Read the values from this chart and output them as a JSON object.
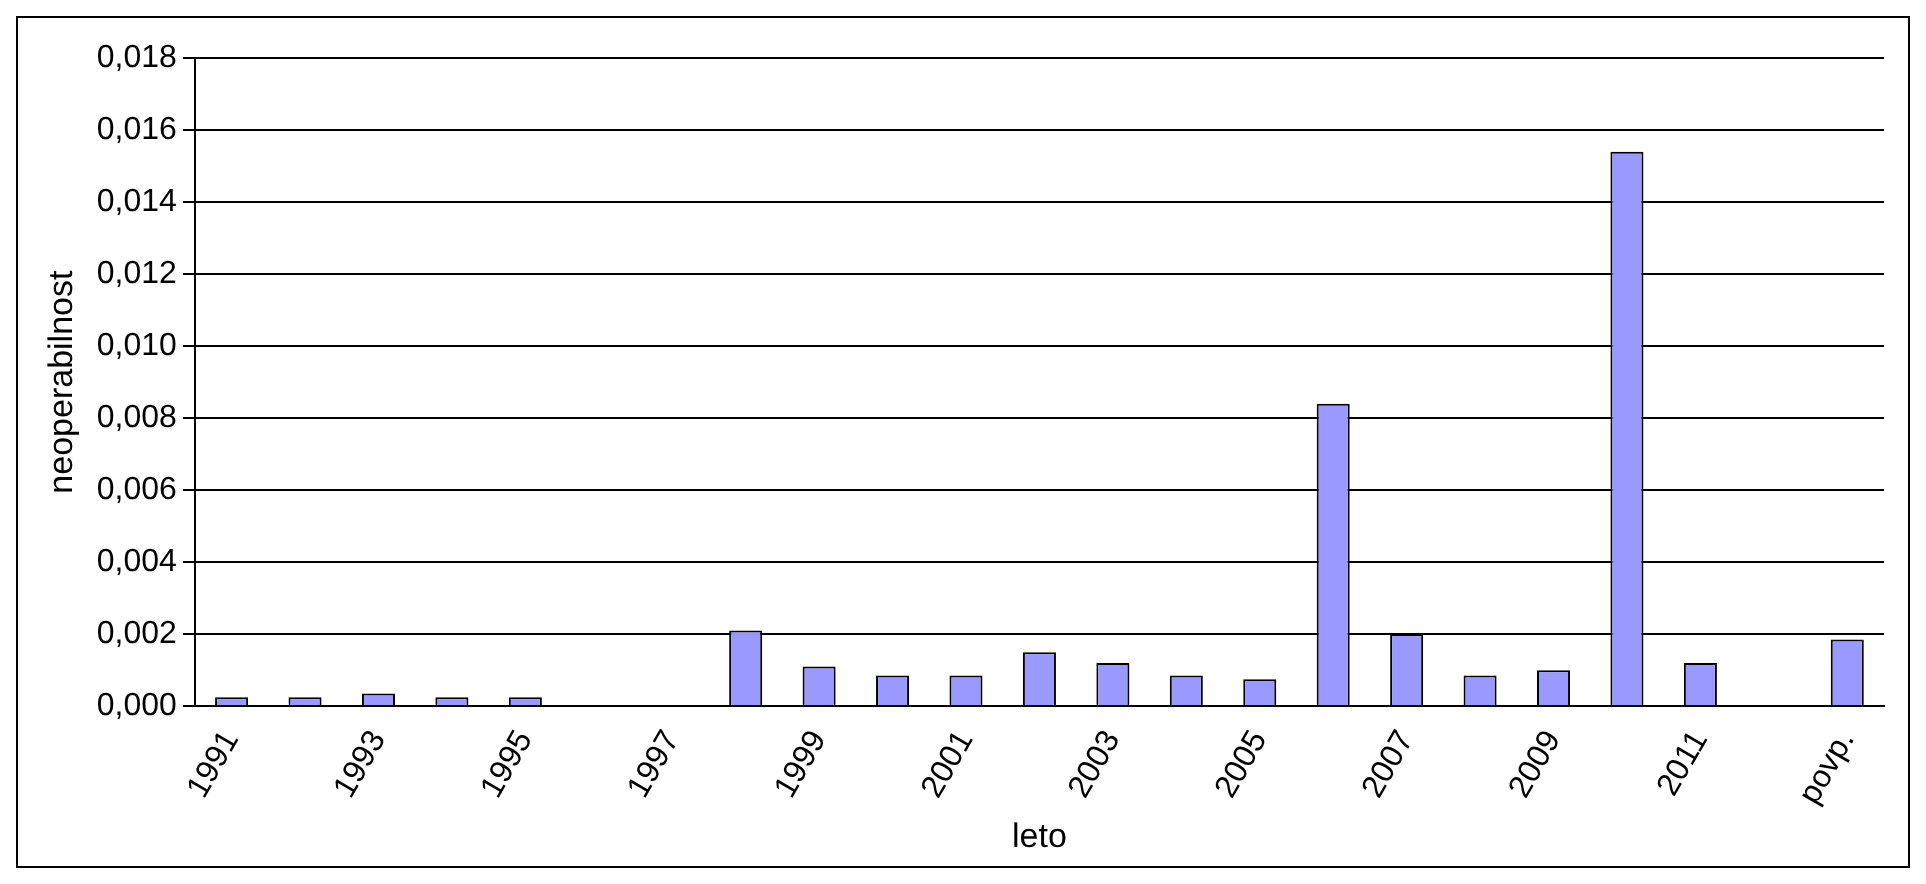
{
  "chart_data": {
    "type": "bar",
    "xlabel": "leto",
    "ylabel": "neoperabilnost",
    "categories": [
      "1991",
      null,
      "1993",
      null,
      "1995",
      null,
      "1997",
      null,
      "1999",
      null,
      "2001",
      null,
      "2003",
      null,
      "2005",
      null,
      "2007",
      null,
      "2009",
      null,
      "2011",
      null,
      "povp."
    ],
    "values": [
      0.00025,
      0.00025,
      0.00035,
      0.00025,
      0.00025,
      0,
      0,
      0.0021,
      0.0011,
      0.00085,
      0.00085,
      0.0015,
      0.0012,
      0.00085,
      0.00075,
      0.0084,
      0.002,
      0.00085,
      0.001,
      0.0154,
      0.0012,
      0,
      0.00185
    ],
    "color": "#9999ff",
    "ylim": [
      0,
      0.018
    ],
    "yticks": [
      {
        "value": 0,
        "label": "0,000"
      },
      {
        "value": 0.002,
        "label": "0,002"
      },
      {
        "value": 0.004,
        "label": "0,004"
      },
      {
        "value": 0.006,
        "label": "0,006"
      },
      {
        "value": 0.008,
        "label": "0,008"
      },
      {
        "value": 0.01,
        "label": "0,010"
      },
      {
        "value": 0.012,
        "label": "0,012"
      },
      {
        "value": 0.014,
        "label": "0,014"
      },
      {
        "value": 0.016,
        "label": "0,016"
      },
      {
        "value": 0.018,
        "label": "0,018"
      }
    ],
    "grid": "y",
    "legend": false
  }
}
